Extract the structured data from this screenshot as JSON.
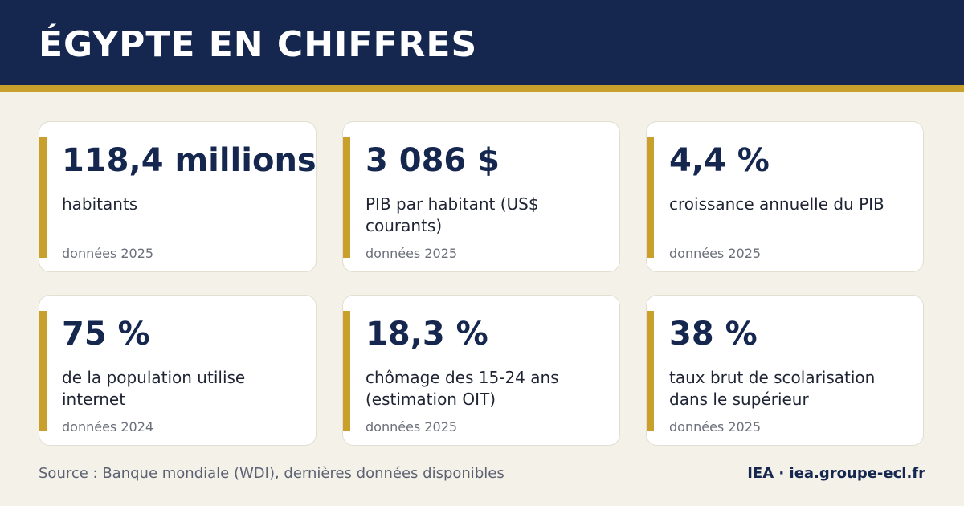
{
  "header": {
    "title": "ÉGYPTE EN CHIFFRES"
  },
  "colors": {
    "navy": "#15274f",
    "gold": "#c9a02b",
    "background": "#f4f1e9"
  },
  "cards": [
    {
      "value": "118,4 millions",
      "description": "habitants",
      "date": "données 2025"
    },
    {
      "value": "3 086 $",
      "description": "PIB par habitant (US$ courants)",
      "date": "données 2025"
    },
    {
      "value": "4,4 %",
      "description": "croissance annuelle du PIB",
      "date": "données 2025"
    },
    {
      "value": "75 %",
      "description": "de la population utilise internet",
      "date": "données 2024"
    },
    {
      "value": "18,3 %",
      "description": "chômage des 15-24 ans (estimation OIT)",
      "date": "données 2025"
    },
    {
      "value": "38 %",
      "description": "taux brut de scolarisation dans le supérieur",
      "date": "données 2025"
    }
  ],
  "footer": {
    "source": "Source : Banque mondiale (WDI), dernières données disponibles",
    "brand": "IEA · iea.groupe-ecl.fr"
  }
}
